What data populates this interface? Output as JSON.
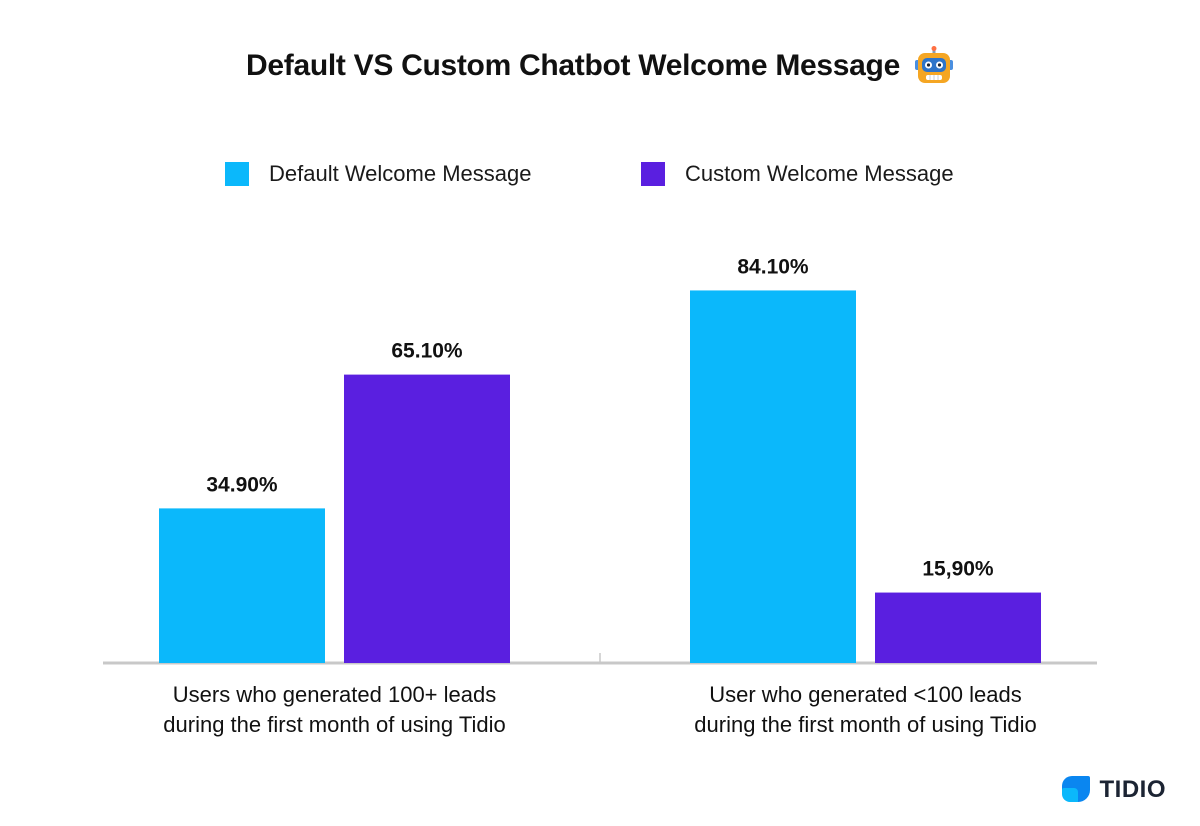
{
  "chart_data": {
    "type": "bar",
    "title": "Default VS Custom Chatbot Welcome Message",
    "categories": [
      [
        "Users who generated 100+ leads",
        "during the first month of using Tidio"
      ],
      [
        "User who generated <100 leads",
        "during the first month of using Tidio"
      ]
    ],
    "series": [
      {
        "name": "Default Welcome Message",
        "color": "#0bb8fb",
        "values": [
          34.9,
          84.1
        ],
        "labels": [
          "34.90%",
          "84.10%"
        ]
      },
      {
        "name": "Custom Welcome Message",
        "color": "#5a1fe0",
        "values": [
          65.1,
          15.9
        ],
        "labels": [
          "65.10%",
          "15,90%"
        ]
      }
    ],
    "ylim": [
      0,
      100
    ],
    "grid": false,
    "legend_position": "top"
  },
  "brand": {
    "name": "TIDIO",
    "icon": "tidio-logo-icon"
  },
  "title_icon": "robot-face-icon",
  "colors": {
    "axis": "#c8c8c8",
    "text": "#111111"
  }
}
